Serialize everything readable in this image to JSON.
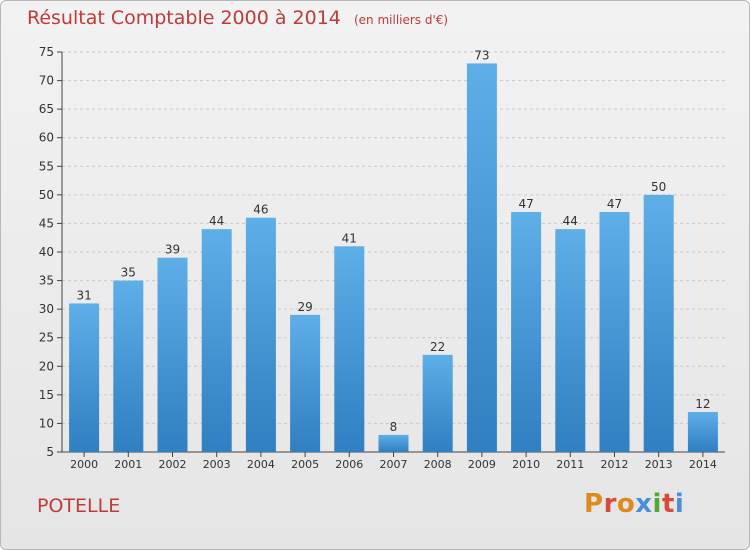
{
  "header": {
    "title": "Résultat Comptable 2000 à 2014",
    "unit": "(en milliers d'€)"
  },
  "footer": {
    "commune": "POTELLE",
    "logo": [
      "P",
      "r",
      "o",
      "x",
      "i",
      "t",
      "i"
    ]
  },
  "colors": {
    "bar": "#3d8fd3",
    "title": "#c03a3a",
    "grid": "#c9c9c9"
  },
  "chart_data": {
    "type": "bar",
    "title": "Résultat Comptable 2000 à 2014",
    "xlabel": "",
    "ylabel": "en milliers d'€",
    "categories": [
      "2000",
      "2001",
      "2002",
      "2003",
      "2004",
      "2005",
      "2006",
      "2007",
      "2008",
      "2009",
      "2010",
      "2011",
      "2012",
      "2013",
      "2014"
    ],
    "values": [
      31,
      35,
      39,
      44,
      46,
      29,
      41,
      8,
      22,
      73,
      47,
      44,
      47,
      50,
      12
    ],
    "ylim": [
      5,
      75
    ],
    "yticks": [
      5,
      10,
      15,
      20,
      25,
      30,
      35,
      40,
      45,
      50,
      55,
      60,
      65,
      70,
      75
    ],
    "grid": "dashed horizontal"
  }
}
